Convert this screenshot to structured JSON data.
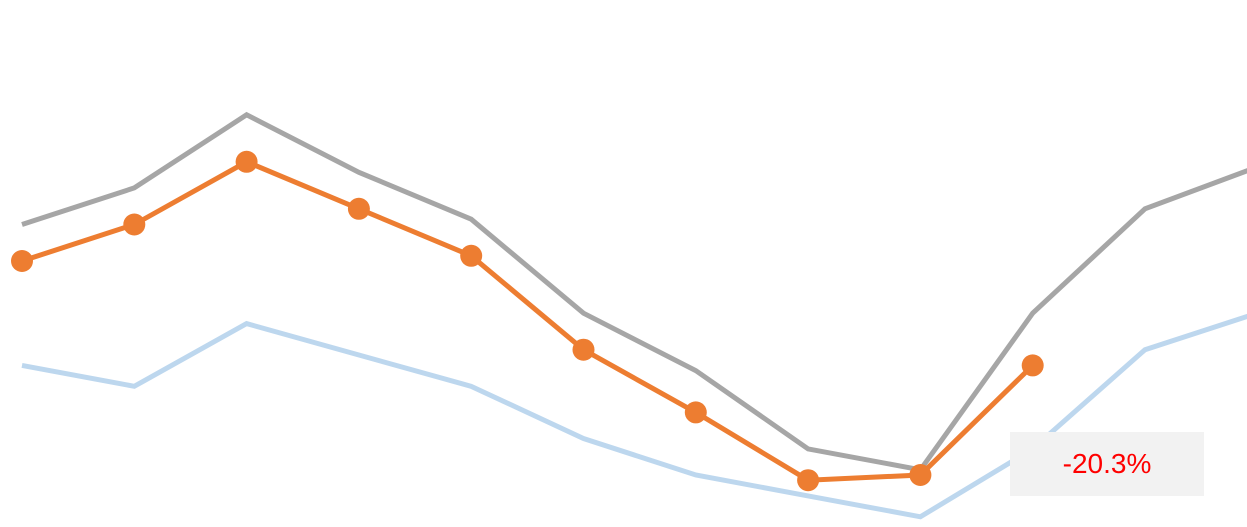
{
  "chart_data": {
    "type": "line",
    "title": "",
    "xlabel": "",
    "ylabel": "",
    "legend": "none",
    "grid": false,
    "x": [
      1,
      2,
      3,
      4,
      5,
      6,
      7,
      8,
      9,
      10,
      11,
      12
    ],
    "ylim": [
      0,
      100
    ],
    "series": [
      {
        "color": "#a6a6a6",
        "values": [
          57,
          64,
          78,
          67,
          58,
          40,
          29,
          14,
          10,
          40,
          60,
          68
        ],
        "markers": false
      },
      {
        "color": "#bdd7ee",
        "values": [
          30,
          26,
          38,
          32,
          26,
          16,
          9,
          5,
          1,
          14,
          33,
          40
        ],
        "markers": false
      },
      {
        "color": "#ed7d31",
        "values": [
          50,
          57,
          69,
          60,
          51,
          33,
          21,
          8,
          9,
          30,
          null,
          null
        ],
        "markers": true
      }
    ],
    "annotation": {
      "text": "-20.3%",
      "color": "#ff0000",
      "background": "#f2f2f2"
    }
  }
}
